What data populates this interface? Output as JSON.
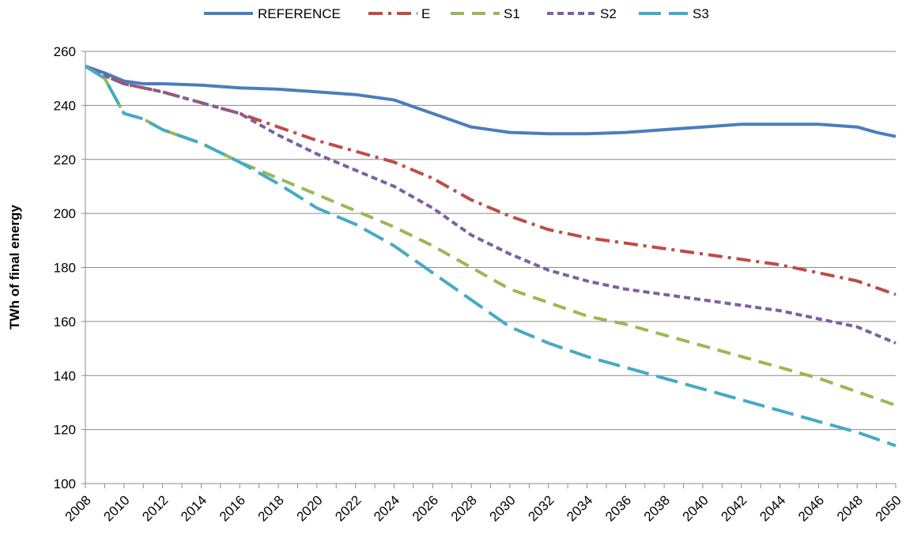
{
  "chart_data": {
    "type": "line",
    "title": "",
    "xlabel": "",
    "ylabel": "TWh of final energy",
    "ylim": [
      100,
      260
    ],
    "yticks": [
      100,
      120,
      140,
      160,
      180,
      200,
      220,
      240,
      260
    ],
    "xlim": [
      2008,
      2050
    ],
    "xticks": [
      "2008",
      "2010",
      "2012",
      "2014",
      "2016",
      "2018",
      "2020",
      "2022",
      "2024",
      "2026",
      "2028",
      "2030",
      "2032",
      "2034",
      "2036",
      "2038",
      "2040",
      "2042",
      "2044",
      "2046",
      "2048",
      "2050"
    ],
    "grid": "horizontal",
    "legend_position": "top",
    "series": [
      {
        "name": "REFERENCE",
        "color": "#4a7ebb",
        "dash": "solid",
        "x": [
          2008,
          2009,
          2010,
          2011,
          2012,
          2014,
          2016,
          2018,
          2020,
          2022,
          2024,
          2026,
          2028,
          2030,
          2032,
          2034,
          2036,
          2038,
          2040,
          2042,
          2044,
          2046,
          2048,
          2049,
          2050
        ],
        "y": [
          254.5,
          252,
          249,
          248,
          248,
          247.5,
          246.5,
          246,
          245,
          244,
          242,
          237,
          232,
          230,
          229.5,
          229.5,
          230,
          231,
          232,
          233,
          233,
          233,
          232,
          230,
          228.5
        ]
      },
      {
        "name": "E",
        "color": "#be4b48",
        "dash": "dashdot",
        "x": [
          2008,
          2009,
          2010,
          2012,
          2014,
          2016,
          2018,
          2020,
          2022,
          2024,
          2026,
          2028,
          2030,
          2032,
          2034,
          2036,
          2038,
          2040,
          2042,
          2044,
          2046,
          2048,
          2050
        ],
        "y": [
          254.5,
          251,
          248,
          245,
          241,
          237,
          232,
          227,
          223,
          219,
          213,
          205,
          199,
          194,
          191,
          189,
          187,
          185,
          183,
          181,
          178,
          175,
          170
        ]
      },
      {
        "name": "S1",
        "color": "#98b954",
        "dash": "dash",
        "x": [
          2008,
          2009,
          2010,
          2011,
          2012,
          2014,
          2016,
          2018,
          2020,
          2022,
          2024,
          2026,
          2028,
          2030,
          2032,
          2034,
          2036,
          2038,
          2040,
          2042,
          2044,
          2046,
          2048,
          2050
        ],
        "y": [
          254.5,
          250,
          237,
          235,
          231,
          226,
          219,
          213,
          207,
          201,
          195,
          188,
          180,
          172,
          167,
          162,
          159,
          155,
          151,
          147,
          143,
          139,
          134,
          129
        ]
      },
      {
        "name": "S2",
        "color": "#7d60a0",
        "dash": "shortdash",
        "x": [
          2008,
          2009,
          2010,
          2012,
          2014,
          2016,
          2018,
          2020,
          2022,
          2024,
          2026,
          2028,
          2030,
          2032,
          2034,
          2036,
          2038,
          2040,
          2042,
          2044,
          2046,
          2048,
          2050
        ],
        "y": [
          254.5,
          251,
          248,
          245,
          241,
          237,
          229,
          222,
          216,
          210,
          202,
          192,
          185,
          179,
          175,
          172,
          170,
          168,
          166,
          164,
          161,
          158,
          152
        ]
      },
      {
        "name": "S3",
        "color": "#46aac5",
        "dash": "longdash",
        "x": [
          2008,
          2009,
          2010,
          2011,
          2012,
          2014,
          2016,
          2018,
          2020,
          2022,
          2024,
          2026,
          2028,
          2030,
          2032,
          2034,
          2036,
          2038,
          2040,
          2042,
          2044,
          2046,
          2048,
          2050
        ],
        "y": [
          254.5,
          250,
          237,
          235,
          231,
          226,
          219,
          211,
          202,
          196,
          188,
          178,
          168,
          158,
          152,
          147,
          143,
          139,
          135,
          131,
          127,
          123,
          119,
          114
        ]
      }
    ]
  }
}
